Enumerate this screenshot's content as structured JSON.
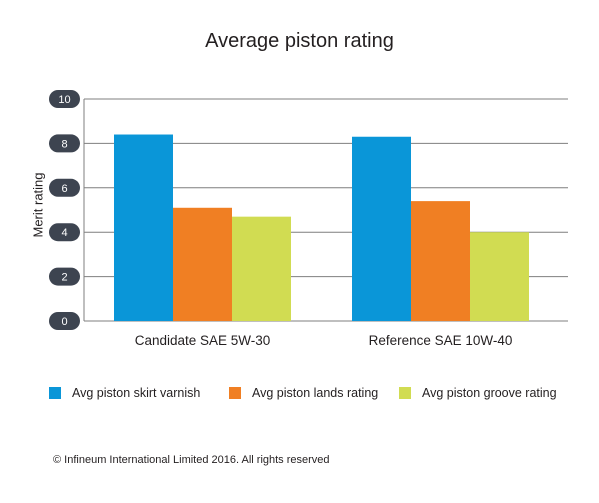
{
  "chart_data": {
    "type": "bar",
    "title": "Average piston rating",
    "ylabel": "Merit rating",
    "xlabel": "",
    "ylim": [
      0,
      10
    ],
    "yticks": [
      0,
      2,
      4,
      6,
      8,
      10
    ],
    "grid": true,
    "legend_position": "bottom",
    "categories": [
      "Candidate SAE 5W-30",
      "Reference SAE 10W-40"
    ],
    "series": [
      {
        "name": "Avg piston skirt varnish",
        "color": "#0a96d8",
        "values": [
          8.4,
          8.3
        ]
      },
      {
        "name": "Avg piston lands rating",
        "color": "#f07f23",
        "values": [
          5.1,
          5.4
        ]
      },
      {
        "name": "Avg piston groove rating",
        "color": "#d1dc52",
        "values": [
          4.7,
          4.0
        ]
      }
    ]
  },
  "footer": {
    "copyright": "© Infineum International Limited 2016. All rights reserved"
  }
}
